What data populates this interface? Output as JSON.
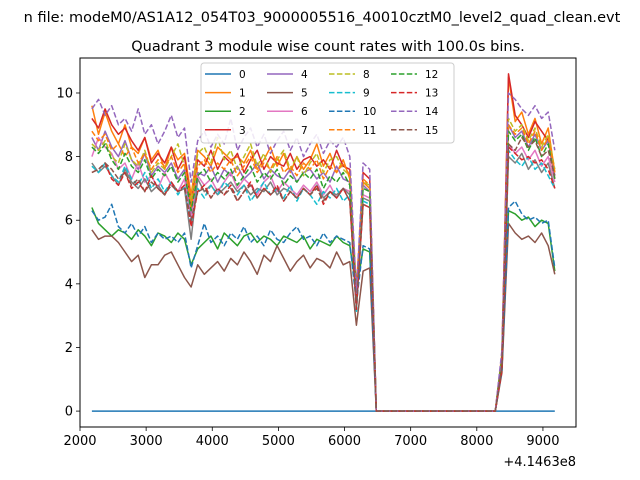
{
  "figure": {
    "suptitle": "n file: modeM0/AS1A12_054T03_9000005516_40010cztM0_level2_quad_clean.evt",
    "title": "Quadrant 3 module wise count rates with 100.0s bins.",
    "x_offset_label": "+4.1463e8"
  },
  "chart_data": {
    "type": "line",
    "title": "Quadrant 3 module wise count rates with 100.0s bins.",
    "xlabel": "",
    "ylabel": "",
    "x_offset": 414630000,
    "xlim": [
      2000,
      9500
    ],
    "ylim": [
      -0.5,
      11.1
    ],
    "xticks": [
      2000,
      3000,
      4000,
      5000,
      6000,
      7000,
      8000,
      9000
    ],
    "yticks": [
      0,
      2,
      4,
      6,
      8,
      10
    ],
    "grid": false,
    "legend": {
      "placement": "upper center",
      "columns": 4
    },
    "x": [
      2180,
      2280,
      2380,
      2480,
      2580,
      2680,
      2780,
      2880,
      2980,
      3080,
      3180,
      3280,
      3380,
      3480,
      3580,
      3680,
      3780,
      3880,
      3980,
      4080,
      4180,
      4280,
      4380,
      4480,
      4580,
      4680,
      4780,
      4880,
      4980,
      5080,
      5180,
      5280,
      5380,
      5480,
      5580,
      5680,
      5780,
      5880,
      5980,
      6080,
      6180,
      6280,
      6380,
      6480,
      8280,
      8380,
      8480,
      8580,
      8680,
      8780,
      8880,
      8980,
      9080,
      9180
    ],
    "series": [
      {
        "name": "0",
        "color": "#1f77b4",
        "style": "solid",
        "values": [
          0,
          0,
          0,
          0,
          0,
          0,
          0,
          0,
          0,
          0,
          0,
          0,
          0,
          0,
          0,
          0,
          0,
          0,
          0,
          0,
          0,
          0,
          0,
          0,
          0,
          0,
          0,
          0,
          0,
          0,
          0,
          0,
          0,
          0,
          0,
          0,
          0,
          0,
          0,
          0,
          0,
          0,
          0,
          0,
          0,
          0,
          0,
          0,
          0,
          0,
          0,
          0,
          0,
          0
        ]
      },
      {
        "name": "1",
        "color": "#ff7f0e",
        "style": "solid",
        "values": [
          9.6,
          8.7,
          9.4,
          8.8,
          8.4,
          9.0,
          8.3,
          8.1,
          8.6,
          7.9,
          8.2,
          7.6,
          8.3,
          7.9,
          8.1,
          6.8,
          8.2,
          8.0,
          7.7,
          8.3,
          8.1,
          7.9,
          8.0,
          7.8,
          8.2,
          7.6,
          7.9,
          8.3,
          7.7,
          8.1,
          7.5,
          8.0,
          7.6,
          7.9,
          8.4,
          7.7,
          8.1,
          7.5,
          7.9,
          7.3,
          3.9,
          7.2,
          7.0,
          0,
          0,
          1.8,
          10.5,
          9.1,
          9.4,
          8.7,
          9.2,
          8.4,
          8.9,
          7.5
        ]
      },
      {
        "name": "2",
        "color": "#2ca02c",
        "style": "solid",
        "values": [
          6.4,
          5.9,
          5.7,
          5.5,
          5.7,
          5.6,
          5.4,
          5.7,
          5.5,
          5.2,
          5.6,
          5.5,
          5.3,
          5.6,
          5.4,
          4.6,
          5.1,
          5.3,
          5.5,
          5.1,
          5.6,
          5.4,
          5.2,
          5.5,
          5.6,
          5.3,
          5.5,
          5.4,
          5.2,
          5.5,
          5.4,
          5.3,
          5.5,
          5.1,
          5.4,
          5.3,
          5.2,
          5.5,
          5.3,
          5.2,
          3.8,
          5.1,
          5.0,
          0,
          0,
          1.3,
          6.3,
          6.2,
          6.0,
          6.1,
          5.8,
          6.0,
          5.9,
          4.4
        ]
      },
      {
        "name": "3",
        "color": "#d62728",
        "style": "solid",
        "values": [
          9.2,
          8.9,
          9.5,
          9.0,
          8.7,
          8.9,
          8.5,
          8.2,
          8.6,
          7.8,
          8.1,
          7.8,
          8.3,
          7.6,
          8.0,
          6.5,
          7.9,
          7.7,
          8.2,
          7.6,
          8.0,
          7.8,
          8.1,
          7.5,
          7.9,
          8.2,
          7.6,
          8.0,
          7.8,
          7.7,
          8.1,
          7.6,
          7.9,
          8.0,
          7.7,
          7.9,
          7.6,
          8.2,
          7.7,
          7.6,
          3.6,
          7.5,
          7.3,
          0,
          0,
          1.7,
          10.6,
          9.3,
          9.0,
          8.6,
          9.1,
          8.8,
          8.5,
          7.3
        ]
      },
      {
        "name": "4",
        "color": "#9467bd",
        "style": "solid",
        "values": [
          8.6,
          8.2,
          8.8,
          8.3,
          8.0,
          8.5,
          7.9,
          7.6,
          8.1,
          7.4,
          7.7,
          7.5,
          7.8,
          7.3,
          7.6,
          6.2,
          7.5,
          7.4,
          7.7,
          7.2,
          7.6,
          7.4,
          7.7,
          7.3,
          7.5,
          7.8,
          7.3,
          7.6,
          7.4,
          7.3,
          7.6,
          7.2,
          7.5,
          7.6,
          7.3,
          7.5,
          7.2,
          7.7,
          7.3,
          7.2,
          3.4,
          7.1,
          6.9,
          0,
          0,
          1.6,
          9.0,
          8.6,
          8.8,
          8.3,
          8.7,
          8.2,
          8.5,
          7.4
        ]
      },
      {
        "name": "5",
        "color": "#8c564b",
        "style": "solid",
        "values": [
          5.7,
          5.4,
          5.5,
          5.5,
          5.3,
          5.0,
          4.7,
          4.9,
          4.2,
          4.6,
          4.6,
          4.9,
          5.0,
          4.6,
          4.2,
          3.9,
          4.6,
          4.3,
          4.5,
          4.7,
          4.4,
          4.8,
          4.6,
          5.0,
          4.7,
          4.3,
          4.9,
          4.7,
          5.2,
          4.8,
          4.4,
          4.7,
          4.9,
          4.5,
          4.8,
          4.7,
          4.5,
          5.0,
          4.6,
          4.7,
          2.7,
          4.4,
          4.5,
          0,
          0,
          1.2,
          5.9,
          5.6,
          5.4,
          5.5,
          5.3,
          5.6,
          5.2,
          4.3
        ]
      },
      {
        "name": "6",
        "color": "#e377c2",
        "style": "solid",
        "values": [
          8.0,
          8.6,
          8.3,
          8.1,
          7.6,
          7.8,
          7.3,
          7.8,
          7.2,
          7.4,
          7.0,
          7.5,
          7.1,
          6.9,
          7.3,
          6.0,
          7.4,
          7.1,
          7.3,
          6.9,
          7.2,
          7.5,
          7.0,
          7.3,
          7.1,
          6.8,
          7.2,
          7.4,
          6.9,
          7.2,
          7.0,
          6.8,
          7.1,
          6.9,
          7.2,
          6.8,
          7.1,
          6.7,
          7.0,
          6.9,
          3.3,
          6.8,
          6.7,
          0,
          0,
          1.5,
          8.4,
          8.1,
          8.3,
          7.9,
          8.2,
          7.7,
          8.0,
          7.2
        ]
      },
      {
        "name": "7",
        "color": "#7f7f7f",
        "style": "solid",
        "values": [
          7.8,
          7.5,
          7.7,
          7.4,
          7.1,
          7.6,
          7.2,
          7.0,
          7.3,
          6.9,
          7.1,
          6.8,
          7.2,
          6.9,
          7.0,
          5.4,
          7.3,
          6.9,
          7.1,
          6.8,
          7.0,
          7.2,
          6.9,
          7.1,
          6.8,
          7.0,
          6.9,
          7.2,
          6.8,
          7.0,
          6.9,
          6.7,
          7.0,
          6.8,
          7.1,
          6.7,
          6.9,
          6.8,
          7.0,
          6.8,
          3.2,
          6.7,
          6.6,
          0,
          0,
          1.4,
          8.0,
          7.8,
          8.1,
          7.6,
          7.9,
          7.5,
          7.8,
          7.0
        ]
      },
      {
        "name": "8",
        "color": "#bcbd22",
        "style": "dashed",
        "values": [
          8.4,
          8.2,
          8.5,
          8.0,
          7.8,
          8.4,
          7.9,
          7.7,
          8.2,
          7.5,
          7.8,
          7.6,
          8.0,
          8.4,
          7.7,
          6.6,
          8.1,
          8.3,
          7.8,
          8.6,
          7.9,
          8.2,
          7.6,
          8.0,
          8.4,
          7.7,
          8.1,
          7.5,
          7.9,
          8.2,
          7.6,
          8.0,
          7.4,
          7.8,
          8.1,
          7.5,
          7.9,
          8.0,
          7.6,
          7.4,
          3.5,
          7.2,
          7.1,
          0,
          0,
          1.7,
          9.2,
          8.8,
          9.0,
          8.5,
          8.9,
          8.3,
          8.7,
          7.6
        ]
      },
      {
        "name": "9",
        "color": "#17becf",
        "style": "dashed",
        "values": [
          7.7,
          7.5,
          7.8,
          7.4,
          7.2,
          7.7,
          7.3,
          7.1,
          7.5,
          7.0,
          7.3,
          6.9,
          7.2,
          6.8,
          7.1,
          5.9,
          7.0,
          6.7,
          7.1,
          6.8,
          7.2,
          7.0,
          6.8,
          7.1,
          6.6,
          6.9,
          7.2,
          6.8,
          7.0,
          6.7,
          7.1,
          6.6,
          7.0,
          6.8,
          6.5,
          6.9,
          6.7,
          7.0,
          6.6,
          6.8,
          3.1,
          6.6,
          6.5,
          0,
          0,
          1.4,
          8.2,
          7.9,
          7.7,
          8.0,
          7.6,
          7.8,
          7.4,
          7.0
        ]
      },
      {
        "name": "10",
        "color": "#1f77b4",
        "style": "dashed",
        "values": [
          6.3,
          6.0,
          6.1,
          6.5,
          5.8,
          5.6,
          5.9,
          5.5,
          5.8,
          5.3,
          5.6,
          5.4,
          5.5,
          5.3,
          5.6,
          4.5,
          5.2,
          5.9,
          5.3,
          5.5,
          5.2,
          5.6,
          5.4,
          5.8,
          5.3,
          5.5,
          5.2,
          5.7,
          5.4,
          5.3,
          5.6,
          5.8,
          5.4,
          5.5,
          5.2,
          5.6,
          5.3,
          5.5,
          5.4,
          5.3,
          3.4,
          5.2,
          5.1,
          0,
          0,
          1.3,
          6.4,
          6.6,
          6.2,
          6.0,
          6.1,
          5.9,
          6.0,
          4.5
        ]
      },
      {
        "name": "11",
        "color": "#ff7f0e",
        "style": "dashed",
        "values": [
          8.8,
          8.5,
          8.7,
          8.2,
          8.4,
          8.0,
          8.3,
          7.8,
          8.1,
          7.6,
          7.9,
          7.7,
          8.0,
          7.5,
          7.8,
          6.4,
          7.7,
          7.9,
          7.5,
          7.8,
          7.6,
          7.9,
          7.4,
          7.7,
          8.0,
          7.5,
          7.8,
          7.6,
          8.0,
          7.5,
          7.7,
          7.4,
          7.8,
          7.6,
          7.9,
          7.3,
          7.7,
          7.5,
          7.8,
          7.4,
          3.6,
          7.3,
          7.1,
          0,
          0,
          1.6,
          9.0,
          8.7,
          8.9,
          8.4,
          8.8,
          8.2,
          8.6,
          7.5
        ]
      },
      {
        "name": "12",
        "color": "#2ca02c",
        "style": "dashed",
        "values": [
          8.3,
          8.1,
          8.4,
          7.9,
          7.6,
          8.1,
          7.7,
          7.5,
          7.9,
          7.3,
          7.6,
          7.4,
          7.7,
          7.2,
          7.5,
          6.3,
          7.4,
          7.6,
          7.2,
          7.5,
          7.3,
          7.6,
          7.1,
          7.4,
          7.7,
          7.2,
          7.5,
          7.3,
          7.6,
          7.1,
          7.4,
          7.2,
          7.5,
          7.3,
          7.6,
          7.0,
          7.4,
          7.2,
          7.5,
          7.1,
          3.5,
          7.0,
          6.9,
          0,
          0,
          1.6,
          8.8,
          8.5,
          8.7,
          8.2,
          8.6,
          8.0,
          8.4,
          7.3
        ]
      },
      {
        "name": "13",
        "color": "#d62728",
        "style": "dashed",
        "values": [
          7.5,
          7.6,
          7.8,
          7.3,
          7.1,
          7.5,
          7.0,
          7.2,
          6.9,
          7.4,
          7.0,
          6.8,
          7.2,
          6.9,
          7.1,
          5.8,
          6.9,
          7.1,
          6.7,
          7.0,
          6.8,
          7.1,
          6.6,
          6.9,
          7.2,
          6.7,
          7.0,
          6.8,
          7.1,
          6.6,
          6.9,
          6.7,
          7.0,
          6.8,
          7.1,
          6.5,
          6.9,
          6.7,
          7.0,
          6.6,
          3.2,
          6.5,
          6.4,
          0,
          0,
          1.3,
          8.3,
          8.1,
          7.9,
          8.0,
          7.8,
          7.9,
          7.6,
          7.0
        ]
      },
      {
        "name": "14",
        "color": "#9467bd",
        "style": "dashed",
        "values": [
          9.5,
          9.8,
          9.3,
          9.6,
          9.0,
          9.2,
          8.8,
          9.5,
          8.7,
          9.0,
          8.4,
          8.8,
          9.3,
          8.6,
          8.9,
          7.2,
          8.5,
          8.8,
          8.3,
          8.7,
          8.4,
          9.2,
          8.2,
          8.6,
          8.9,
          8.3,
          8.7,
          8.1,
          8.5,
          8.8,
          8.2,
          8.6,
          8.0,
          8.4,
          8.7,
          8.1,
          8.5,
          8.3,
          8.6,
          8.0,
          3.7,
          7.8,
          7.6,
          0,
          0,
          1.9,
          10.0,
          9.8,
          9.5,
          9.3,
          9.6,
          9.2,
          9.4,
          8.2
        ]
      },
      {
        "name": "15",
        "color": "#8c564b",
        "style": "dashed",
        "values": [
          7.5,
          7.6,
          7.8,
          7.6,
          7.3,
          7.5,
          7.1,
          7.3,
          6.9,
          7.2,
          7.0,
          6.8,
          7.1,
          6.9,
          7.0,
          6.0,
          6.9,
          7.0,
          6.7,
          7.0,
          6.8,
          7.0,
          6.6,
          6.9,
          7.1,
          6.7,
          7.0,
          6.8,
          7.0,
          6.6,
          6.9,
          6.7,
          7.0,
          6.8,
          7.0,
          6.6,
          6.9,
          6.7,
          7.0,
          6.6,
          3.3,
          6.5,
          6.4,
          0,
          0,
          1.4,
          8.4,
          8.2,
          8.6,
          8.3,
          8.5,
          8.0,
          8.2,
          7.4
        ]
      }
    ]
  }
}
